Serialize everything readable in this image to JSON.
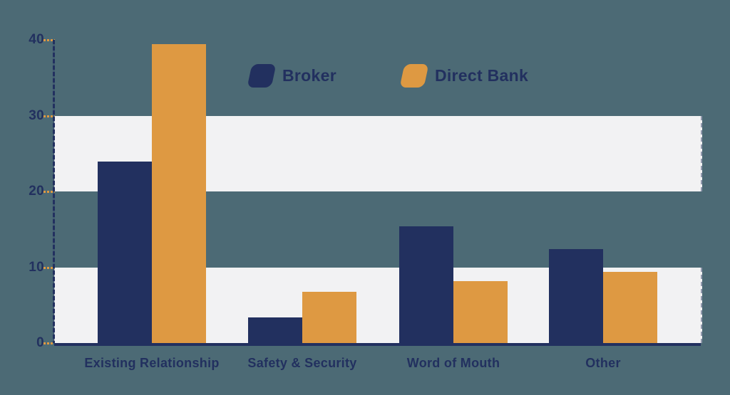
{
  "colors": {
    "background": "#4C6A75",
    "broker": "#22305F",
    "direct_bank": "#DE9942",
    "band": "#F2F2F3",
    "text": "#22305F",
    "tick": "#DE9942"
  },
  "legend": {
    "items": [
      {
        "label": "Broker",
        "key": "broker"
      },
      {
        "label": "Direct Bank",
        "key": "direct-bank"
      }
    ]
  },
  "chart_data": {
    "type": "bar",
    "categories": [
      "Existing Relationship",
      "Safety & Security",
      "Word of Mouth",
      "Other"
    ],
    "series": [
      {
        "name": "Broker",
        "key": "broker",
        "values": [
          23.9,
          3.4,
          15.4,
          12.4
        ]
      },
      {
        "name": "Direct Bank",
        "key": "direct-bank",
        "values": [
          39.4,
          6.8,
          8.2,
          9.4
        ]
      }
    ],
    "title": "",
    "xlabel": "",
    "ylabel": "",
    "ylim": [
      0,
      40
    ],
    "yticks": [
      0,
      10,
      20,
      30,
      40
    ],
    "shaded_bands": [
      [
        0,
        10
      ],
      [
        20,
        30
      ]
    ],
    "grid": "alternating horizontal shaded bands",
    "legend_position": "top-center"
  }
}
